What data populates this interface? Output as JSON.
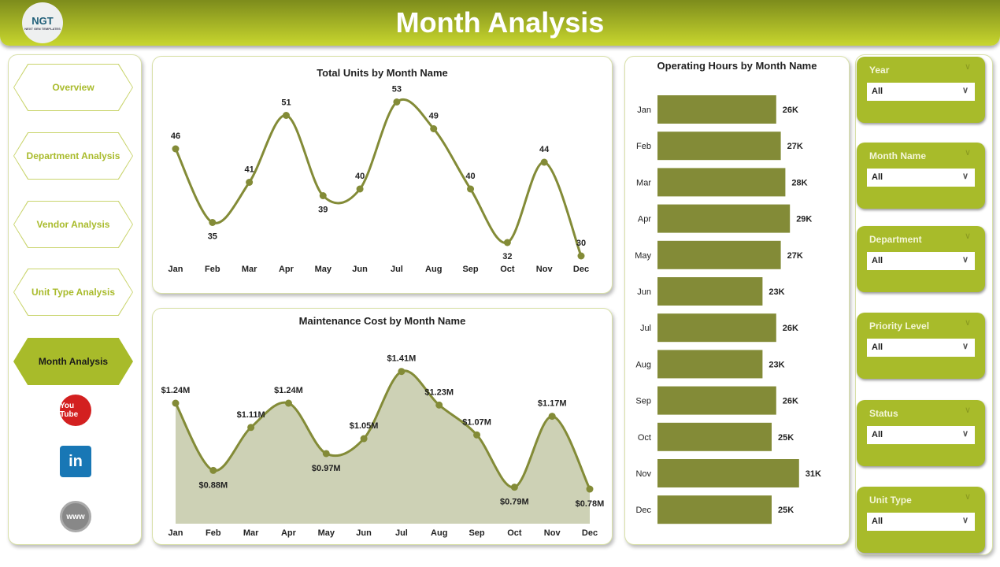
{
  "header": {
    "title": "Month Analysis",
    "logo_text": "NGT",
    "logo_sub": "NEXT GEN TEMPLATES"
  },
  "nav": [
    {
      "label": "Overview"
    },
    {
      "label": "Department Analysis"
    },
    {
      "label": "Vendor Analysis"
    },
    {
      "label": "Unit Type Analysis"
    },
    {
      "label": "Month Analysis",
      "active": true
    }
  ],
  "social": [
    {
      "icon": "youtube-icon",
      "label": "You Tube"
    },
    {
      "icon": "linkedin-icon",
      "label": "in"
    },
    {
      "icon": "globe-icon",
      "label": "www"
    }
  ],
  "filters": [
    {
      "label": "Year",
      "value": "All"
    },
    {
      "label": "Month Name",
      "value": "All"
    },
    {
      "label": "Department",
      "value": "All"
    },
    {
      "label": "Priority Level",
      "value": "All"
    },
    {
      "label": "Status",
      "value": "All"
    },
    {
      "label": "Unit Type",
      "value": "All"
    }
  ],
  "colors": {
    "accent": "#a8bb2a",
    "series": "#838b37",
    "area": "#cdd1b5"
  },
  "chart_data": [
    {
      "type": "line",
      "title": "Total Units by Month Name",
      "categories": [
        "Jan",
        "Feb",
        "Mar",
        "Apr",
        "May",
        "Jun",
        "Jul",
        "Aug",
        "Sep",
        "Oct",
        "Nov",
        "Dec"
      ],
      "values": [
        46,
        35,
        41,
        51,
        39,
        40,
        53,
        49,
        40,
        32,
        44,
        30
      ],
      "labels": [
        "46",
        "35",
        "41",
        "51",
        "39",
        "40",
        "53",
        "49",
        "40",
        "32",
        "44",
        "30"
      ]
    },
    {
      "type": "area",
      "title": "Maintenance Cost by Month Name",
      "categories": [
        "Jan",
        "Feb",
        "Mar",
        "Apr",
        "May",
        "Jun",
        "Jul",
        "Aug",
        "Sep",
        "Oct",
        "Nov",
        "Dec"
      ],
      "values": [
        1.24,
        0.88,
        1.11,
        1.24,
        0.97,
        1.05,
        1.41,
        1.23,
        1.07,
        0.79,
        1.17,
        0.78
      ],
      "labels": [
        "$1.24M",
        "$0.88M",
        "$1.11M",
        "$1.24M",
        "$0.97M",
        "$1.05M",
        "$1.41M",
        "$1.23M",
        "$1.07M",
        "$0.79M",
        "$1.17M",
        "$0.78M"
      ]
    },
    {
      "type": "bar",
      "orientation": "horizontal",
      "title": "Operating Hours by Month Name",
      "categories": [
        "Jan",
        "Feb",
        "Mar",
        "Apr",
        "May",
        "Jun",
        "Jul",
        "Aug",
        "Sep",
        "Oct",
        "Nov",
        "Dec"
      ],
      "values": [
        26,
        27,
        28,
        29,
        27,
        23,
        26,
        23,
        26,
        25,
        31,
        25
      ],
      "labels": [
        "26K",
        "27K",
        "28K",
        "29K",
        "27K",
        "23K",
        "26K",
        "23K",
        "26K",
        "25K",
        "31K",
        "25K"
      ]
    }
  ]
}
